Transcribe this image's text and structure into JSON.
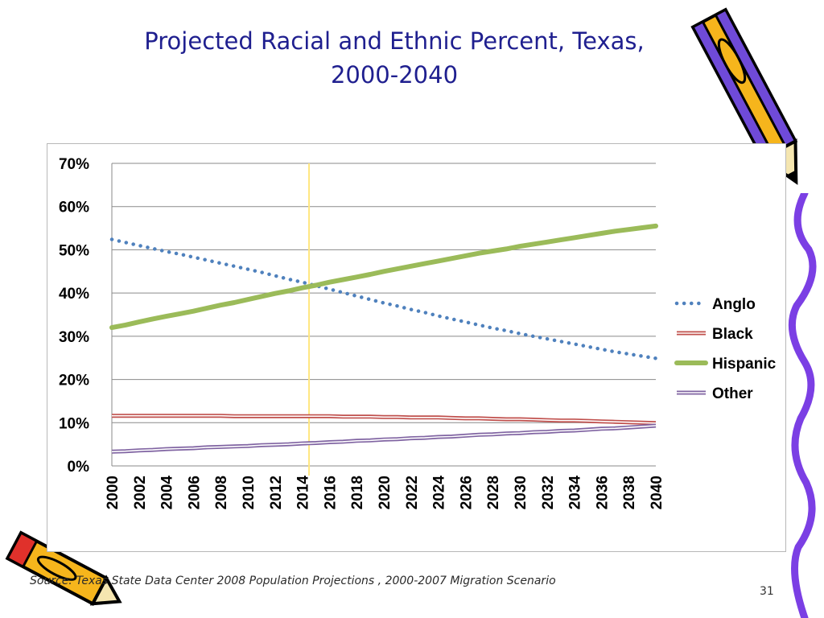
{
  "slide": {
    "title_line1": "Projected Racial and Ethnic Percent, Texas,",
    "title_line2": "2000-2040",
    "source": "Source: Texas State Data Center 2008 Population Projections , 2000-2007 Migration Scenario",
    "page_number": "31"
  },
  "colors": {
    "title": "#1f1f8f",
    "anglo": "#4f81bd",
    "black": "#c0504d",
    "hispanic": "#9bbb59",
    "other": "#8064a2",
    "marker_line": "#ffe680"
  },
  "chart_data": {
    "type": "line",
    "x": [
      2000,
      2001,
      2002,
      2003,
      2004,
      2005,
      2006,
      2007,
      2008,
      2009,
      2010,
      2011,
      2012,
      2013,
      2014,
      2015,
      2016,
      2017,
      2018,
      2019,
      2020,
      2021,
      2022,
      2023,
      2024,
      2025,
      2026,
      2027,
      2028,
      2029,
      2030,
      2031,
      2032,
      2033,
      2034,
      2035,
      2036,
      2037,
      2038,
      2039,
      2040
    ],
    "x_tick_labels": [
      "2000",
      "2002",
      "2004",
      "2006",
      "2008",
      "2010",
      "2012",
      "2014",
      "2016",
      "2018",
      "2020",
      "2022",
      "2024",
      "2026",
      "2028",
      "2030",
      "2032",
      "2034",
      "2036",
      "2038",
      "2040"
    ],
    "y_tick_labels": [
      "0%",
      "10%",
      "20%",
      "30%",
      "40%",
      "50%",
      "60%",
      "70%"
    ],
    "ylim": [
      0,
      70
    ],
    "grid": true,
    "legend_position": "right",
    "vertical_marker_x": 2014.5,
    "series": [
      {
        "name": "Anglo",
        "style": "dotted",
        "values": [
          52.4,
          51.7,
          51.0,
          50.3,
          49.6,
          49.0,
          48.3,
          47.6,
          46.9,
          46.2,
          45.5,
          44.8,
          44.0,
          43.2,
          42.5,
          41.7,
          40.9,
          40.1,
          39.3,
          38.5,
          37.7,
          37.0,
          36.2,
          35.5,
          34.7,
          34.0,
          33.3,
          32.6,
          31.9,
          31.3,
          30.6,
          30.0,
          29.4,
          28.8,
          28.2,
          27.6,
          27.0,
          26.4,
          25.9,
          25.4,
          24.9
        ]
      },
      {
        "name": "Black",
        "style": "double",
        "values": [
          11.6,
          11.6,
          11.6,
          11.6,
          11.6,
          11.6,
          11.6,
          11.6,
          11.6,
          11.5,
          11.5,
          11.5,
          11.5,
          11.5,
          11.5,
          11.5,
          11.5,
          11.4,
          11.4,
          11.4,
          11.3,
          11.3,
          11.2,
          11.2,
          11.2,
          11.1,
          11.0,
          11.0,
          10.9,
          10.8,
          10.8,
          10.7,
          10.6,
          10.5,
          10.5,
          10.4,
          10.3,
          10.2,
          10.1,
          10.0,
          9.9
        ]
      },
      {
        "name": "Hispanic",
        "style": "thick",
        "values": [
          32.0,
          32.6,
          33.3,
          34.0,
          34.6,
          35.2,
          35.8,
          36.5,
          37.2,
          37.8,
          38.5,
          39.2,
          39.9,
          40.5,
          41.2,
          41.8,
          42.5,
          43.1,
          43.7,
          44.3,
          45.0,
          45.6,
          46.2,
          46.8,
          47.4,
          48.0,
          48.6,
          49.2,
          49.7,
          50.2,
          50.8,
          51.3,
          51.8,
          52.3,
          52.8,
          53.3,
          53.8,
          54.3,
          54.7,
          55.1,
          55.5
        ]
      },
      {
        "name": "Other",
        "style": "double",
        "values": [
          3.3,
          3.4,
          3.6,
          3.7,
          3.9,
          4.0,
          4.1,
          4.3,
          4.4,
          4.5,
          4.6,
          4.8,
          4.9,
          5.0,
          5.2,
          5.3,
          5.5,
          5.6,
          5.8,
          5.9,
          6.1,
          6.2,
          6.4,
          6.5,
          6.7,
          6.8,
          7.0,
          7.2,
          7.3,
          7.5,
          7.6,
          7.8,
          7.9,
          8.1,
          8.2,
          8.4,
          8.6,
          8.7,
          8.9,
          9.1,
          9.3
        ]
      }
    ]
  }
}
